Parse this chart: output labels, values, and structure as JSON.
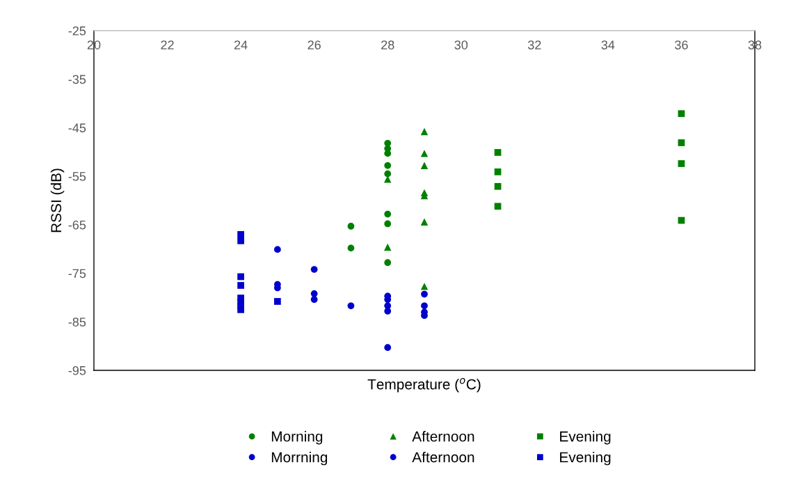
{
  "chart_data": {
    "type": "scatter",
    "xlabel": "Temperature ($^{o}$C)",
    "ylabel": "RSSI (dB)",
    "xlim": [
      20,
      38
    ],
    "xticks": [
      20,
      22,
      24,
      26,
      28,
      30,
      32,
      34,
      36,
      38
    ],
    "ylim": [
      -95,
      -25
    ],
    "yticks": [
      -95,
      -85,
      -75,
      -65,
      -55,
      -45,
      -35,
      -25
    ],
    "grid": false,
    "legend": "bottom",
    "series": [
      {
        "name": "Morning",
        "color": "#008000",
        "marker": "circle",
        "x": [
          27,
          27,
          28,
          28,
          28,
          28,
          28,
          28,
          28,
          28
        ],
        "values": [
          -65.3,
          -69.8,
          -48.2,
          -49.3,
          -50.3,
          -52.8,
          -54.5,
          -62.8,
          -64.8,
          -72.8
        ]
      },
      {
        "name": "Afternoon",
        "color": "#008000",
        "marker": "triangle",
        "x": [
          28,
          28,
          29,
          29,
          29,
          29,
          29,
          29,
          29
        ],
        "values": [
          -55.6,
          -69.6,
          -45.8,
          -50.3,
          -52.8,
          -58.4,
          -59.0,
          -64.4,
          -77.7
        ]
      },
      {
        "name": "Evening",
        "color": "#008000",
        "marker": "square",
        "x": [
          31,
          31,
          31,
          31,
          36,
          36,
          36,
          36
        ],
        "values": [
          -50.1,
          -54.1,
          -57.1,
          -61.2,
          -42.1,
          -48.1,
          -52.4,
          -64.1
        ]
      },
      {
        "name": "Morrning",
        "color": "#0000cc",
        "marker": "circle",
        "x": [
          25,
          25,
          25,
          26,
          26,
          26
        ],
        "values": [
          -70.1,
          -77.3,
          -78.0,
          -74.2,
          -79.2,
          -80.4
        ]
      },
      {
        "name": "Afternoon",
        "color": "#0000cc",
        "marker": "circle",
        "x": [
          27,
          28,
          28,
          28,
          28,
          28,
          29,
          29,
          29,
          29
        ],
        "values": [
          -81.7,
          -79.7,
          -80.4,
          -81.7,
          -82.8,
          -90.3,
          -79.3,
          -81.7,
          -83.0,
          -83.7
        ]
      },
      {
        "name": "Evening",
        "color": "#0000cc",
        "marker": "square",
        "x": [
          24,
          24,
          24,
          24,
          24,
          24,
          24,
          24,
          25
        ],
        "values": [
          -67.0,
          -68.3,
          -75.7,
          -77.5,
          -80.1,
          -80.9,
          -81.8,
          -82.5,
          -80.8
        ]
      }
    ]
  }
}
